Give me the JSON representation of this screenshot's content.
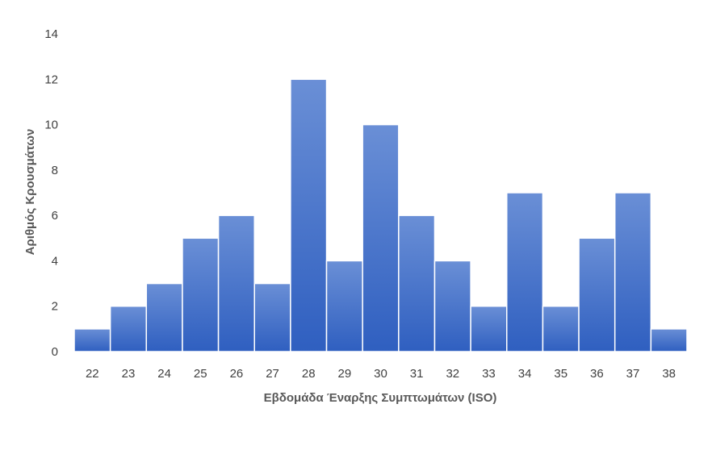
{
  "chart_data": {
    "type": "bar",
    "title": "",
    "xlabel": "Εβδομάδα Έναρξης Συμπτωμάτων (ISO)",
    "ylabel": "Αριθμός Κρουσμάτων",
    "categories": [
      "22",
      "23",
      "24",
      "25",
      "26",
      "27",
      "28",
      "29",
      "30",
      "31",
      "32",
      "33",
      "34",
      "35",
      "36",
      "37",
      "38"
    ],
    "values": [
      1,
      2,
      3,
      5,
      6,
      3,
      12,
      4,
      10,
      6,
      4,
      2,
      7,
      2,
      5,
      7,
      1
    ],
    "ylim": [
      0,
      14
    ],
    "yticks": [
      "0",
      "2",
      "4",
      "6",
      "8",
      "10",
      "12",
      "14"
    ],
    "grid": false,
    "bar_color_top": "#6a8fd6",
    "bar_color_bottom": "#2f5fc0",
    "bar_edge_color": "#ffffff"
  }
}
